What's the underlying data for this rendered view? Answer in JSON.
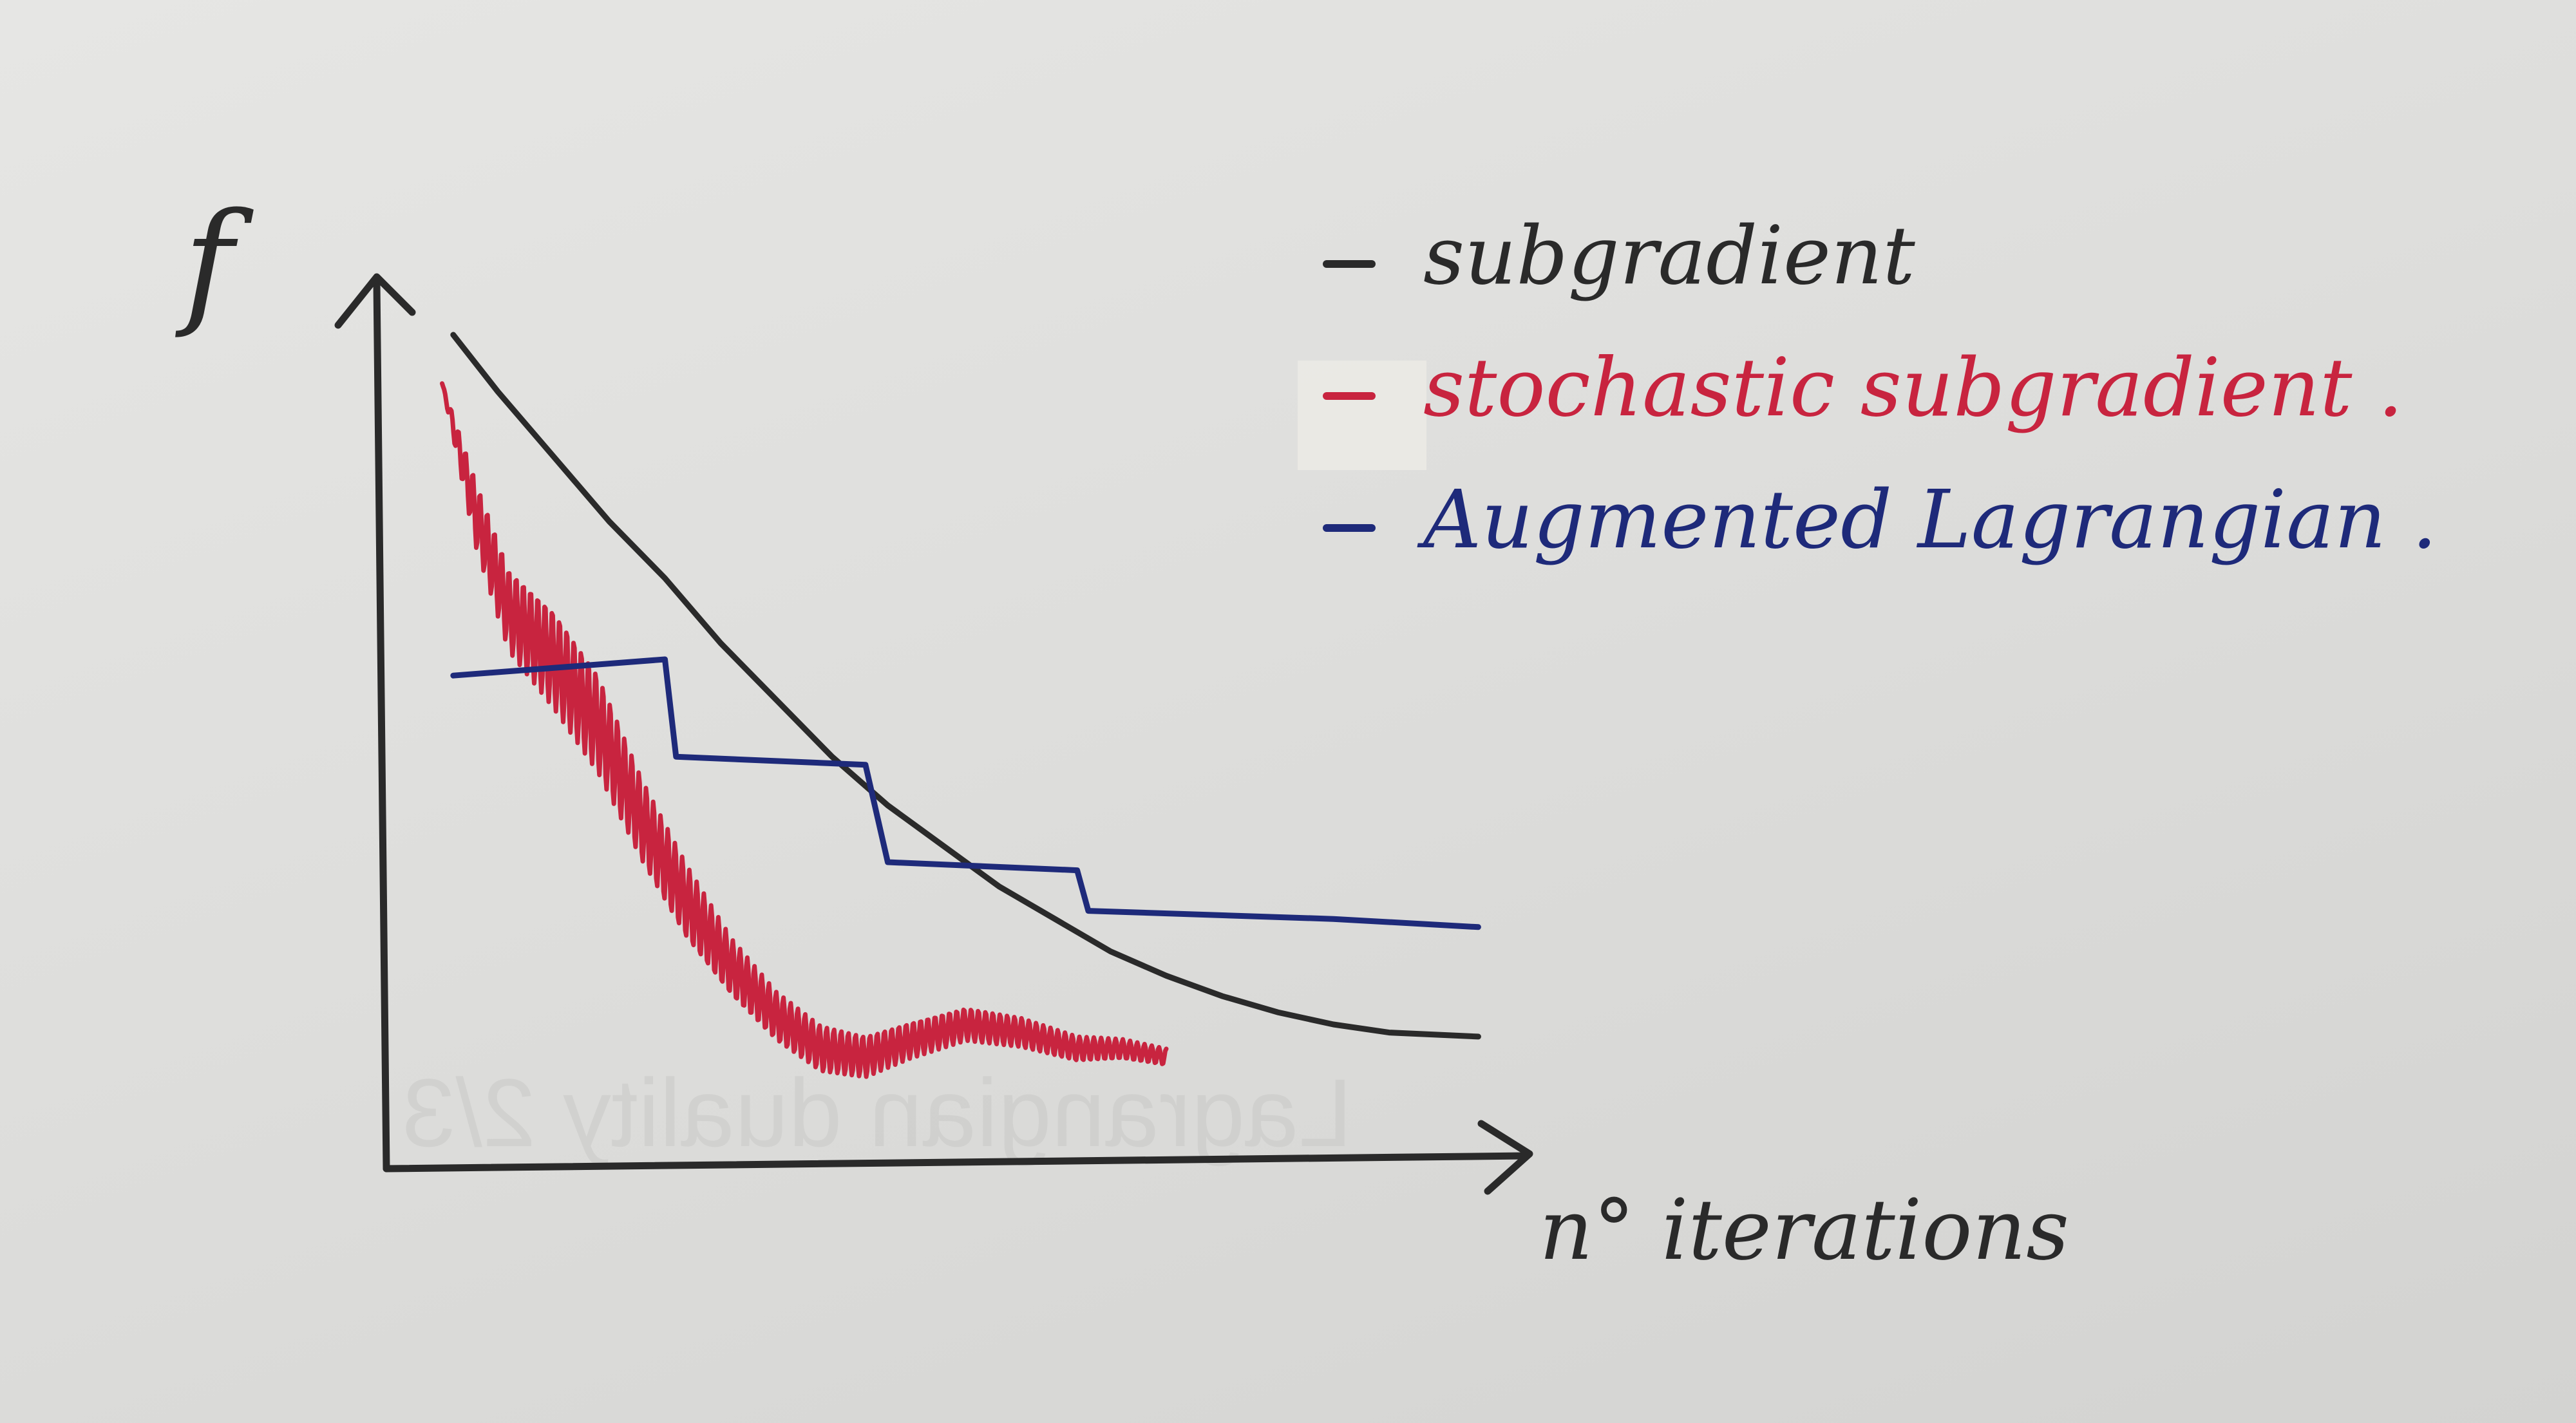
{
  "chart_data": {
    "type": "line",
    "title": "",
    "ylabel": "f",
    "xlabel": "n° iterations",
    "xlim": [
      0,
      1
    ],
    "ylim": [
      0,
      1
    ],
    "grid": false,
    "legend_position": "top-right",
    "series": [
      {
        "name": "subgradient",
        "color": "#2a2a2a",
        "style": "smooth",
        "points": [
          [
            0.06,
            1.0
          ],
          [
            0.1,
            0.93
          ],
          [
            0.15,
            0.85
          ],
          [
            0.2,
            0.77
          ],
          [
            0.25,
            0.7
          ],
          [
            0.3,
            0.62
          ],
          [
            0.35,
            0.55
          ],
          [
            0.4,
            0.48
          ],
          [
            0.45,
            0.42
          ],
          [
            0.5,
            0.37
          ],
          [
            0.55,
            0.32
          ],
          [
            0.6,
            0.28
          ],
          [
            0.65,
            0.24
          ],
          [
            0.7,
            0.21
          ],
          [
            0.75,
            0.185
          ],
          [
            0.8,
            0.165
          ],
          [
            0.85,
            0.15
          ],
          [
            0.9,
            0.14
          ],
          [
            0.98,
            0.135
          ]
        ]
      },
      {
        "name": "stochastic subgradient .",
        "color": "#c8243f",
        "style": "noisy",
        "points": [
          [
            0.05,
            0.94
          ],
          [
            0.08,
            0.78
          ],
          [
            0.11,
            0.66
          ],
          [
            0.15,
            0.6
          ],
          [
            0.19,
            0.52
          ],
          [
            0.23,
            0.4
          ],
          [
            0.27,
            0.3
          ],
          [
            0.31,
            0.22
          ],
          [
            0.35,
            0.16
          ],
          [
            0.39,
            0.12
          ],
          [
            0.43,
            0.11
          ],
          [
            0.47,
            0.13
          ],
          [
            0.52,
            0.15
          ],
          [
            0.57,
            0.14
          ],
          [
            0.62,
            0.12
          ],
          [
            0.66,
            0.12
          ],
          [
            0.7,
            0.11
          ]
        ],
        "noise": [
          0,
          0.04,
          0.05,
          0.06,
          0.06,
          0.05,
          0.045,
          0.035,
          0.03,
          0.028,
          0.025,
          0.022,
          0.02,
          0.018,
          0.015,
          0.012,
          0.01
        ]
      },
      {
        "name": "Augmented Lagrangian .",
        "color": "#1e2a7a",
        "style": "step",
        "points": [
          [
            0.06,
            0.58
          ],
          [
            0.25,
            0.6
          ],
          [
            0.26,
            0.48
          ],
          [
            0.43,
            0.47
          ],
          [
            0.45,
            0.35
          ],
          [
            0.62,
            0.34
          ],
          [
            0.63,
            0.29
          ],
          [
            0.85,
            0.28
          ],
          [
            0.98,
            0.27
          ]
        ]
      }
    ]
  },
  "background_text": "Lagrangian duality 2/3"
}
